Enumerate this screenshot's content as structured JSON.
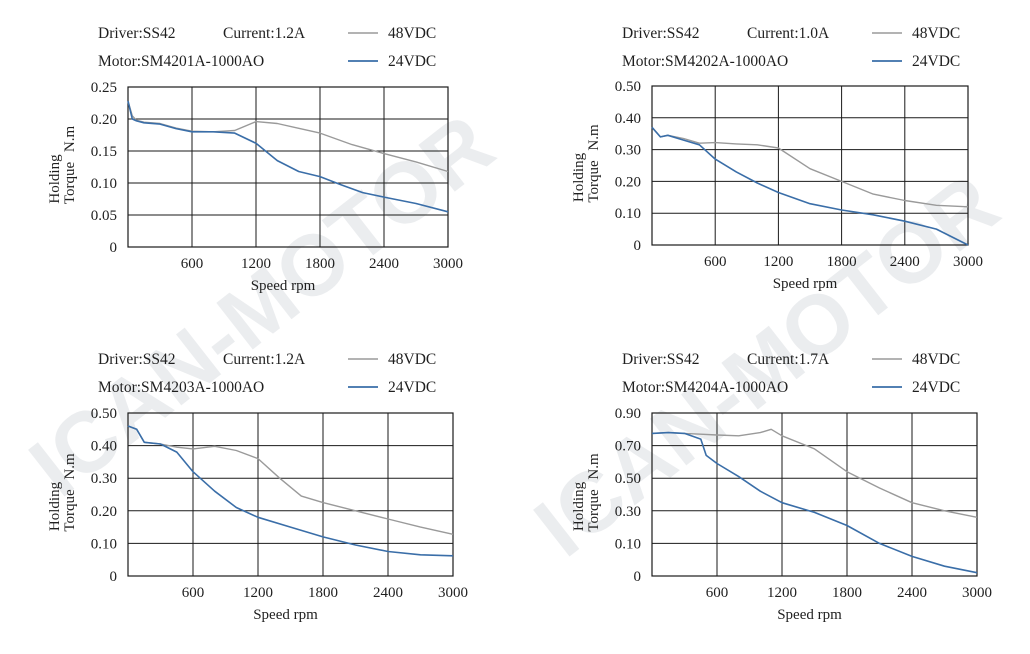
{
  "watermark": "ICAN-MOTOR",
  "colors": {
    "v48": "#9a9a9a",
    "v24": "#3a6ea8",
    "grid": "#1a1a1a"
  },
  "chart_data": [
    {
      "type": "line",
      "driver": "Driver:SS42",
      "current": "Current:1.2A",
      "motor": "Motor:SM4201A-1000AO",
      "xlabel": "Speed rpm",
      "ylabel": [
        "Holding",
        "Torque",
        "N.m"
      ],
      "xlim": [
        0,
        3000
      ],
      "ylim": [
        0,
        0.25
      ],
      "xticks": [
        600,
        1200,
        1800,
        2400,
        3000
      ],
      "xtick_labels": [
        "600",
        "1200",
        "1800",
        "2400",
        "3000"
      ],
      "yticks": [
        0,
        0.05,
        0.1,
        0.15,
        0.2,
        0.25
      ],
      "ytick_labels": [
        "0",
        "0.05",
        "0.10",
        "0.15",
        "0.20",
        "0.25"
      ],
      "series": [
        {
          "name": "48VDC",
          "color": "#9a9a9a",
          "x": [
            0,
            40,
            80,
            150,
            300,
            450,
            600,
            800,
            1000,
            1200,
            1400,
            1800,
            2100,
            2400,
            2700,
            3000
          ],
          "y": [
            0.228,
            0.205,
            0.198,
            0.195,
            0.193,
            0.186,
            0.181,
            0.18,
            0.182,
            0.196,
            0.193,
            0.178,
            0.16,
            0.146,
            0.133,
            0.118
          ]
        },
        {
          "name": "24VDC",
          "color": "#3a6ea8",
          "x": [
            0,
            40,
            80,
            150,
            300,
            450,
            600,
            800,
            1000,
            1200,
            1400,
            1600,
            1800,
            2000,
            2200,
            2400,
            2700,
            3000
          ],
          "y": [
            0.228,
            0.2,
            0.197,
            0.194,
            0.192,
            0.185,
            0.18,
            0.18,
            0.178,
            0.162,
            0.135,
            0.118,
            0.11,
            0.097,
            0.085,
            0.078,
            0.068,
            0.055
          ]
        }
      ]
    },
    {
      "type": "line",
      "driver": "Driver:SS42",
      "current": "Current:1.0A",
      "motor": "Motor:SM4202A-1000AO",
      "xlabel": "Speed rpm",
      "ylabel": [
        "Holding",
        "Torque",
        "N.m"
      ],
      "xlim": [
        0,
        3000
      ],
      "ylim": [
        0,
        0.5
      ],
      "xticks": [
        600,
        1200,
        1800,
        2400,
        3000
      ],
      "xtick_labels": [
        "600",
        "1200",
        "1800",
        "2400",
        "3000"
      ],
      "yticks": [
        0,
        0.1,
        0.2,
        0.3,
        0.4,
        0.5
      ],
      "ytick_labels": [
        "0",
        "0.10",
        "0.20",
        "0.30",
        "0.40",
        "0.50"
      ],
      "series": [
        {
          "name": "48VDC",
          "color": "#9a9a9a",
          "x": [
            0,
            80,
            150,
            300,
            450,
            600,
            800,
            1000,
            1200,
            1500,
            1800,
            2100,
            2400,
            2700,
            3000
          ],
          "y": [
            0.37,
            0.34,
            0.345,
            0.335,
            0.32,
            0.322,
            0.318,
            0.315,
            0.305,
            0.24,
            0.2,
            0.16,
            0.14,
            0.125,
            0.12
          ]
        },
        {
          "name": "24VDC",
          "color": "#3a6ea8",
          "x": [
            0,
            80,
            150,
            300,
            450,
            600,
            800,
            1000,
            1200,
            1500,
            1800,
            2100,
            2400,
            2700,
            3000
          ],
          "y": [
            0.37,
            0.34,
            0.345,
            0.33,
            0.315,
            0.27,
            0.23,
            0.195,
            0.165,
            0.13,
            0.11,
            0.095,
            0.075,
            0.05,
            0.0
          ]
        }
      ]
    },
    {
      "type": "line",
      "driver": "Driver:SS42",
      "current": "Current:1.2A",
      "motor": "Motor:SM4203A-1000AO",
      "xlabel": "Speed rpm",
      "ylabel": [
        "Holding",
        "Torque",
        "N.m"
      ],
      "xlim": [
        0,
        3000
      ],
      "ylim": [
        0,
        0.5
      ],
      "xticks": [
        600,
        1200,
        1800,
        2400,
        3000
      ],
      "xtick_labels": [
        "600",
        "1200",
        "1800",
        "2400",
        "3000"
      ],
      "yticks": [
        0,
        0.1,
        0.2,
        0.3,
        0.4,
        0.5
      ],
      "ytick_labels": [
        "0",
        "0.10",
        "0.20",
        "0.30",
        "0.40",
        "0.50"
      ],
      "series": [
        {
          "name": "48VDC",
          "color": "#9a9a9a",
          "x": [
            0,
            80,
            150,
            300,
            450,
            600,
            800,
            1000,
            1200,
            1400,
            1600,
            1800,
            2100,
            2400,
            2700,
            3000
          ],
          "y": [
            0.46,
            0.45,
            0.41,
            0.405,
            0.395,
            0.39,
            0.398,
            0.385,
            0.36,
            0.3,
            0.245,
            0.225,
            0.2,
            0.175,
            0.15,
            0.128
          ]
        },
        {
          "name": "24VDC",
          "color": "#3a6ea8",
          "x": [
            0,
            80,
            150,
            300,
            450,
            600,
            800,
            1000,
            1200,
            1500,
            1800,
            2100,
            2400,
            2700,
            3000
          ],
          "y": [
            0.46,
            0.45,
            0.41,
            0.405,
            0.38,
            0.32,
            0.26,
            0.21,
            0.18,
            0.15,
            0.12,
            0.095,
            0.075,
            0.065,
            0.062
          ]
        }
      ]
    },
    {
      "type": "line",
      "driver": "Driver:SS42",
      "current": "Current:1.7A",
      "motor": "Motor:SM4204A-1000AO",
      "xlabel": "Speed rpm",
      "ylabel": [
        "Holding",
        "Torque",
        "N.m"
      ],
      "xlim": [
        0,
        3000
      ],
      "ylim": [
        0,
        0.9
      ],
      "xticks": [
        600,
        1200,
        1800,
        2400,
        3000
      ],
      "xtick_labels": [
        "600",
        "1200",
        "1800",
        "2400",
        "3000"
      ],
      "yticks": [
        0,
        0.1,
        0.3,
        0.5,
        0.7,
        0.9
      ],
      "ytick_labels": [
        "0",
        "0.10",
        "0.30",
        "0.50",
        "0.70",
        "0.90"
      ],
      "series": [
        {
          "name": "48VDC",
          "color": "#9a9a9a",
          "x": [
            0,
            150,
            300,
            450,
            600,
            800,
            1000,
            1100,
            1200,
            1500,
            1800,
            2100,
            2400,
            2700,
            3000
          ],
          "y": [
            0.775,
            0.78,
            0.775,
            0.77,
            0.765,
            0.76,
            0.78,
            0.8,
            0.76,
            0.68,
            0.54,
            0.44,
            0.35,
            0.3,
            0.26
          ]
        },
        {
          "name": "24VDC",
          "color": "#3a6ea8",
          "x": [
            0,
            150,
            300,
            450,
            500,
            600,
            800,
            1000,
            1200,
            1500,
            1800,
            2100,
            2400,
            2700,
            3000
          ],
          "y": [
            0.775,
            0.78,
            0.775,
            0.74,
            0.64,
            0.59,
            0.51,
            0.42,
            0.35,
            0.29,
            0.21,
            0.1,
            0.06,
            0.03,
            0.01
          ]
        }
      ]
    }
  ]
}
